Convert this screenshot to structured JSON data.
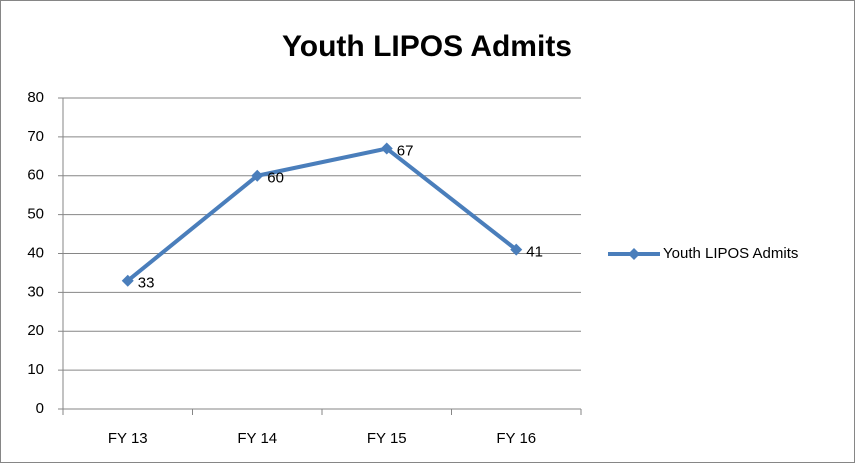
{
  "chart_data": {
    "type": "line",
    "title": "Youth LIPOS Admits",
    "categories": [
      "FY 13",
      "FY 14",
      "FY 15",
      "FY 16"
    ],
    "series": [
      {
        "name": "Youth LIPOS Admits",
        "color": "#4a7ebb",
        "values": [
          33,
          60,
          67,
          41
        ]
      }
    ],
    "ylim": [
      0,
      80
    ],
    "yticks": [
      0,
      10,
      20,
      30,
      40,
      50,
      60,
      70,
      80
    ],
    "grid": true,
    "legend": "right",
    "data_labels": true
  }
}
